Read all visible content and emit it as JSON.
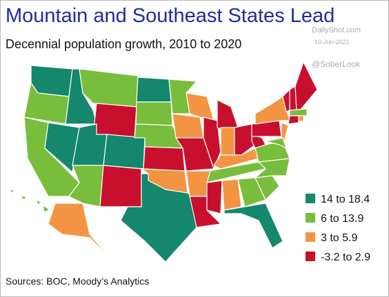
{
  "title": "Mountain and Southeast States Lead",
  "subtitle": "Decennial population growth, 2010 to 2020",
  "watermark": {
    "site": "DailyShot.com",
    "date": "10-Jun-2021",
    "handle": "@SoberLook"
  },
  "legend": [
    {
      "label": "14 to 18.4",
      "color": "#14876c"
    },
    {
      "label": "6 to 13.9",
      "color": "#78bd3c"
    },
    {
      "label": "3 to 5.9",
      "color": "#f39442"
    },
    {
      "label": "-3.2 to 2.9",
      "color": "#c8102e"
    }
  ],
  "source": "Sources: BOC, Moody’s Analytics"
}
